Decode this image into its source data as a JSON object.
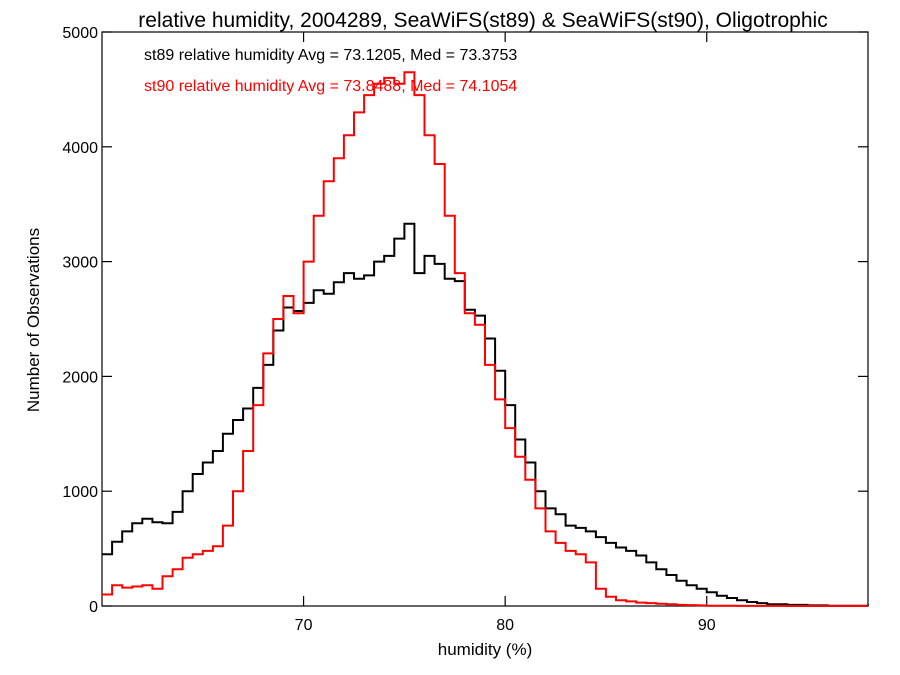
{
  "chart_data": {
    "type": "line",
    "title": "relative humidity, 2004289, SeaWiFS(st89) & SeaWiFS(st90), Oligotrophic",
    "xlabel": "humidity (%)",
    "ylabel": "Number of Observations",
    "xlim": [
      60,
      98
    ],
    "ylim": [
      0,
      5000
    ],
    "x_ticks": [
      70,
      80,
      90
    ],
    "y_ticks": [
      0,
      1000,
      2000,
      3000,
      4000,
      5000
    ],
    "grid": false,
    "step": true,
    "legend_position": "top-left",
    "annotations": [
      {
        "text": "st89 relative humidity Avg = 73.1205, Med = 73.3753",
        "color": "#000000"
      },
      {
        "text": "st90 relative humidity Avg = 73.8488, Med = 74.1054",
        "color": "#ff0000"
      }
    ],
    "series": [
      {
        "color": "#000000",
        "x": [
          60.0,
          60.5,
          61.0,
          61.5,
          62.0,
          62.5,
          63.0,
          63.5,
          64.0,
          64.5,
          65.0,
          65.5,
          66.0,
          66.5,
          67.0,
          67.5,
          68.0,
          68.5,
          69.0,
          69.5,
          70.0,
          70.5,
          71.0,
          71.5,
          72.0,
          72.5,
          73.0,
          73.5,
          74.0,
          74.5,
          75.0,
          75.5,
          76.0,
          76.5,
          77.0,
          77.5,
          78.0,
          78.5,
          79.0,
          79.5,
          80.0,
          80.5,
          81.0,
          81.5,
          82.0,
          82.5,
          83.0,
          83.5,
          84.0,
          84.5,
          85.0,
          85.5,
          86.0,
          86.5,
          87.0,
          87.5,
          88.0,
          88.5,
          89.0,
          89.5,
          90.0,
          90.5,
          91.0,
          91.5,
          92.0,
          92.5,
          93.0,
          94.0,
          95.0,
          96.0,
          97.0,
          98.0
        ],
        "y": [
          450,
          560,
          650,
          720,
          760,
          730,
          720,
          820,
          1000,
          1150,
          1250,
          1350,
          1500,
          1620,
          1720,
          1900,
          2100,
          2400,
          2600,
          2570,
          2640,
          2750,
          2720,
          2820,
          2900,
          2850,
          2880,
          3000,
          3050,
          3200,
          3330,
          2900,
          3050,
          2980,
          2850,
          2830,
          2580,
          2530,
          2330,
          2050,
          1750,
          1450,
          1250,
          1000,
          850,
          800,
          700,
          680,
          650,
          600,
          550,
          510,
          480,
          440,
          380,
          320,
          270,
          220,
          180,
          150,
          120,
          90,
          70,
          50,
          35,
          25,
          15,
          10,
          5,
          3,
          2,
          0
        ]
      },
      {
        "color": "#ff0000",
        "x": [
          60.0,
          60.5,
          61.0,
          61.5,
          62.0,
          62.5,
          63.0,
          63.5,
          64.0,
          64.5,
          65.0,
          65.5,
          66.0,
          66.5,
          67.0,
          67.5,
          68.0,
          68.5,
          69.0,
          69.5,
          70.0,
          70.5,
          71.0,
          71.5,
          72.0,
          72.5,
          73.0,
          73.5,
          74.0,
          74.5,
          75.0,
          75.5,
          76.0,
          76.5,
          77.0,
          77.5,
          78.0,
          78.5,
          79.0,
          79.5,
          80.0,
          80.5,
          81.0,
          81.5,
          82.0,
          82.5,
          83.0,
          83.5,
          84.0,
          84.5,
          85.0,
          85.5,
          86.0,
          86.5,
          87.0,
          87.5,
          88.0,
          88.5,
          89.0,
          89.5,
          90.0,
          90.5,
          91.0,
          91.5,
          92.0,
          93.0,
          94.0,
          95.0,
          96.0,
          97.0,
          98.0
        ],
        "y": [
          100,
          180,
          160,
          170,
          180,
          150,
          260,
          320,
          420,
          450,
          480,
          520,
          700,
          1000,
          1350,
          1750,
          2200,
          2500,
          2700,
          2550,
          3000,
          3400,
          3700,
          3900,
          4100,
          4300,
          4450,
          4550,
          4600,
          4550,
          4650,
          4450,
          4100,
          3850,
          3400,
          2900,
          2550,
          2450,
          2100,
          1800,
          1550,
          1300,
          1100,
          850,
          650,
          550,
          480,
          450,
          380,
          150,
          80,
          50,
          40,
          30,
          25,
          20,
          15,
          10,
          8,
          5,
          3,
          2,
          2,
          1,
          1,
          1,
          0,
          0,
          0,
          0,
          0
        ]
      }
    ]
  }
}
